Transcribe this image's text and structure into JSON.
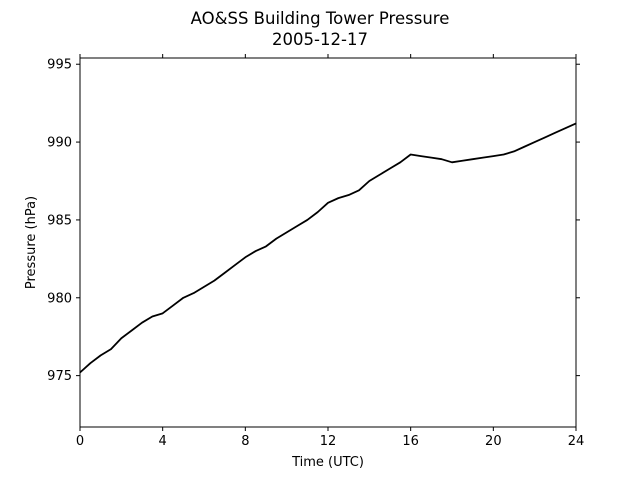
{
  "chart_data": {
    "type": "line",
    "title": "AO&SS Building Tower Pressure",
    "subtitle": "2005-12-17",
    "xlabel": "Time (UTC)",
    "ylabel": "Pressure (hPa)",
    "xlim": [
      0,
      24
    ],
    "ylim": [
      971.7,
      995.4
    ],
    "xticks": [
      0,
      4,
      8,
      12,
      16,
      20,
      24
    ],
    "yticks": [
      975,
      980,
      985,
      990,
      995
    ],
    "grid": false,
    "legend": "none",
    "series": [
      {
        "color": "#000000",
        "x": [
          0,
          0.5,
          1,
          1.5,
          2,
          2.5,
          3,
          3.5,
          4,
          4.5,
          5,
          5.5,
          6,
          6.5,
          7,
          7.5,
          8,
          8.5,
          9,
          9.5,
          10,
          10.5,
          11,
          11.5,
          12,
          12.5,
          13,
          13.5,
          14,
          14.5,
          15,
          15.5,
          16,
          16.5,
          17,
          17.5,
          18,
          18.5,
          19,
          19.5,
          20,
          20.5,
          21,
          21.5,
          22,
          22.5,
          23,
          23.5,
          24
        ],
        "y": [
          975.2,
          975.8,
          976.3,
          976.7,
          977.4,
          977.9,
          978.4,
          978.8,
          979.0,
          979.5,
          980.0,
          980.3,
          980.7,
          981.1,
          981.6,
          982.1,
          982.6,
          983.0,
          983.3,
          983.8,
          984.2,
          984.6,
          985.0,
          985.5,
          986.1,
          986.4,
          986.6,
          986.9,
          987.5,
          987.9,
          988.3,
          988.7,
          989.2,
          989.1,
          989.0,
          988.9,
          988.7,
          988.8,
          988.9,
          989.0,
          989.1,
          989.2,
          989.4,
          989.7,
          990.0,
          990.3,
          990.6,
          990.9,
          991.2
        ]
      }
    ]
  }
}
